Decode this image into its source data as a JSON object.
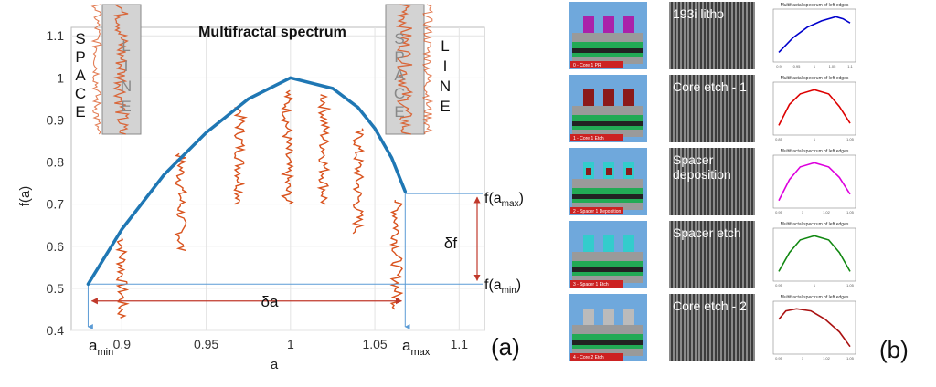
{
  "colors": {
    "curve": "#1f77b4",
    "roughness": "#d9531e",
    "roughness_light": "#f0a080",
    "guide": "#5b9bd5",
    "arrow": "#c0392b",
    "box": "#d3d3d3",
    "panel_b_sem": "#4a4a4a"
  },
  "chart_data": [
    {
      "type": "line",
      "title": "Multifractal spectrum",
      "xlabel": "a",
      "ylabel": "f(a)",
      "xlim": [
        0.87,
        1.115
      ],
      "ylim": [
        0.4,
        1.12
      ],
      "xticks": [
        "0.9",
        "0.95",
        "1",
        "1.05",
        "1.1"
      ],
      "yticks": [
        "0.4",
        "0.5",
        "0.6",
        "0.7",
        "0.8",
        "0.9",
        "1",
        "1.1"
      ],
      "grid": true,
      "series": [
        {
          "x": [
            0.88,
            0.9,
            0.925,
            0.95,
            0.975,
            1.0,
            1.025,
            1.04,
            1.05,
            1.06,
            1.068
          ],
          "y": [
            0.51,
            0.64,
            0.77,
            0.87,
            0.95,
            1.0,
            0.975,
            0.93,
            0.88,
            0.81,
            0.73
          ]
        }
      ],
      "annotations": {
        "a_min": "a",
        "a_min_sub": "min",
        "a_max": "a",
        "a_max_sub": "max",
        "delta_a": "δa",
        "delta_f": "δf",
        "f_amax": "f(a",
        "f_amax_sub": "max",
        "f_amin": "f(a",
        "f_amin_sub": "min",
        "close": ")",
        "space": "SPACE",
        "line": "LINE",
        "panel_label": "(a)"
      },
      "a_min_value": 0.88,
      "a_max_value": 1.068,
      "f_min_value": 0.51,
      "f_max_value": 0.725,
      "roughness_columns": [
        {
          "x": 0.9,
          "y_low": 0.43,
          "y_high": 0.62
        },
        {
          "x": 0.935,
          "y_low": 0.59,
          "y_high": 0.82
        },
        {
          "x": 0.97,
          "y_low": 0.7,
          "y_high": 0.93
        },
        {
          "x": 0.998,
          "y_low": 0.7,
          "y_high": 0.97
        },
        {
          "x": 1.02,
          "y_low": 0.7,
          "y_high": 0.96
        },
        {
          "x": 1.04,
          "y_low": 0.63,
          "y_high": 0.88
        },
        {
          "x": 1.063,
          "y_low": 0.45,
          "y_high": 0.71
        }
      ]
    },
    {
      "type": "line",
      "title": "Multifractal spectrum of left edges",
      "xticks": [
        "0.9",
        "0.95",
        "1",
        "1.05",
        "1.1"
      ],
      "color": "#0000cc",
      "x": [
        0,
        0.2,
        0.4,
        0.6,
        0.8,
        0.9,
        1.0
      ],
      "y": [
        0.1,
        0.45,
        0.7,
        0.85,
        0.95,
        0.9,
        0.8
      ]
    },
    {
      "type": "line",
      "title": "Multifractal spectrum of left edges",
      "xticks": [
        "0.85",
        "1",
        "1.05"
      ],
      "color": "#dd0000",
      "x": [
        0,
        0.15,
        0.3,
        0.5,
        0.7,
        0.85,
        1.0
      ],
      "y": [
        0.1,
        0.6,
        0.85,
        0.95,
        0.85,
        0.55,
        0.15
      ]
    },
    {
      "type": "line",
      "title": "Multifractal spectrum of left edges",
      "xticks": [
        "0.95",
        "1",
        "1.02",
        "1.05"
      ],
      "color": "#dd00dd",
      "x": [
        0,
        0.15,
        0.3,
        0.5,
        0.7,
        0.85,
        1.0
      ],
      "y": [
        0.05,
        0.55,
        0.85,
        0.95,
        0.85,
        0.6,
        0.2
      ]
    },
    {
      "type": "line",
      "title": "Multifractal spectrum of left edges",
      "xticks": [
        "0.95",
        "1",
        "1.05"
      ],
      "color": "#118811",
      "x": [
        0,
        0.15,
        0.3,
        0.5,
        0.7,
        0.85,
        1.0
      ],
      "y": [
        0.1,
        0.55,
        0.85,
        0.95,
        0.85,
        0.55,
        0.1
      ]
    },
    {
      "type": "line",
      "title": "Multifractal spectrum of left edges",
      "xticks": [
        "0.95",
        "1",
        "1.02",
        "1.05"
      ],
      "color": "#aa1111",
      "x": [
        0,
        0.1,
        0.25,
        0.45,
        0.65,
        0.85,
        1.0
      ],
      "y": [
        0.7,
        0.9,
        0.95,
        0.9,
        0.7,
        0.4,
        0.05
      ]
    }
  ],
  "panel_b": {
    "rows": [
      {
        "stack_label": "0 - Core 1 PR",
        "step_label": "193i litho"
      },
      {
        "stack_label": "1 - Core 1 Etch",
        "step_label": "Core etch - 1"
      },
      {
        "stack_label": "2 - Spacer 1 Deposition",
        "step_label": "Spacer deposition"
      },
      {
        "stack_label": "3 - Spacer 1 Etch",
        "step_label": "Spacer etch"
      },
      {
        "stack_label": "4 - Core 2 Etch",
        "step_label": "Core etch - 2"
      }
    ],
    "panel_label": "(b)"
  }
}
